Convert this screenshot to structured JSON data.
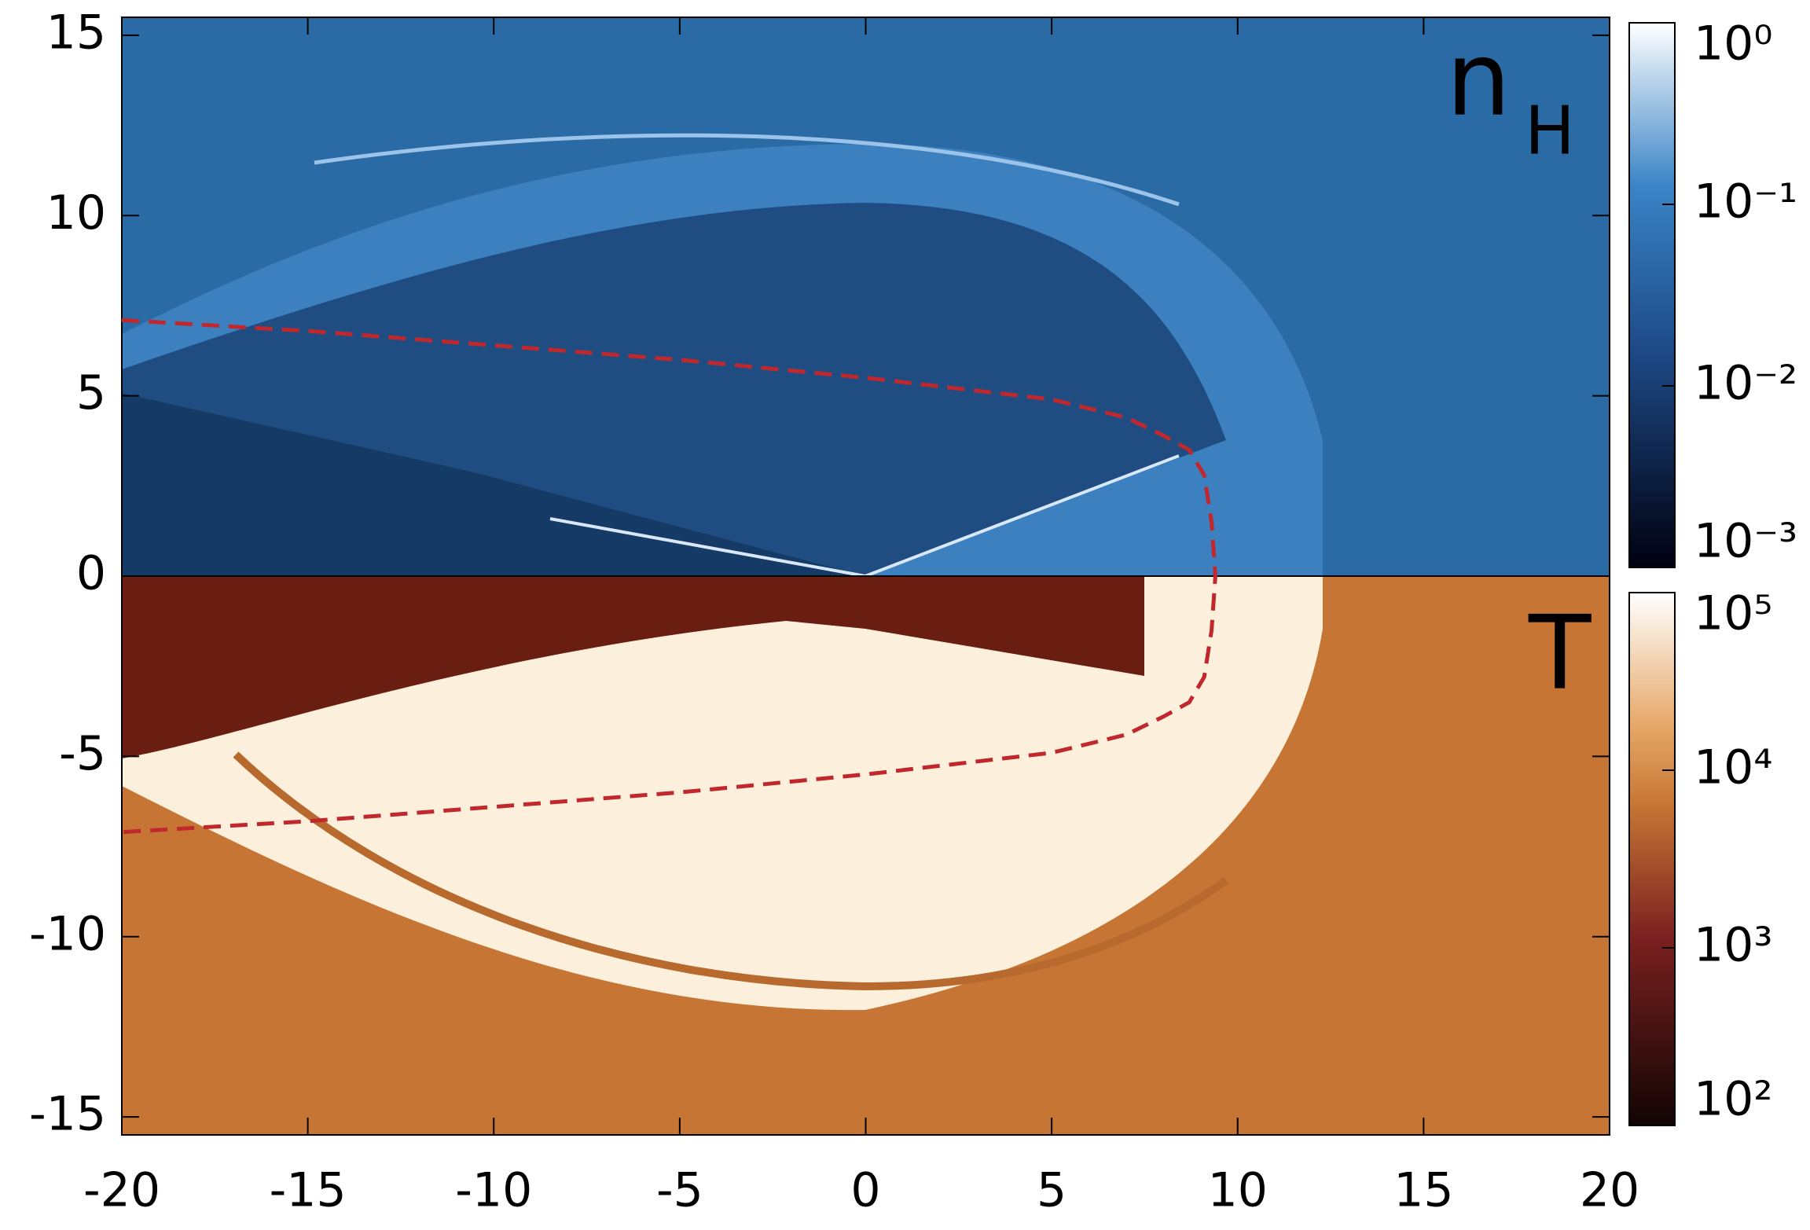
{
  "chart_data": {
    "type": "map",
    "xlim": [
      -20,
      20
    ],
    "ylim": [
      -15.5,
      15.5
    ],
    "xticks": [
      -20,
      -15,
      -10,
      -5,
      0,
      5,
      10,
      15,
      20
    ],
    "yticks": [
      15,
      10,
      5,
      0,
      -5,
      -10,
      -15
    ],
    "curve": {
      "color": "#c0282d",
      "x": [
        -20,
        -15,
        -10,
        -5,
        0,
        5,
        7,
        8,
        8.7,
        9.1,
        9.3,
        9.4,
        9.3,
        9.1,
        8.7,
        8,
        7,
        5,
        0,
        -5,
        -10,
        -15,
        -20
      ],
      "y": [
        7.1,
        6.8,
        6.4,
        6.0,
        5.5,
        4.9,
        4.4,
        3.9,
        3.5,
        2.8,
        1.5,
        0,
        -1.5,
        -2.8,
        -3.5,
        -3.9,
        -4.4,
        -4.9,
        -5.5,
        -6.0,
        -6.4,
        -6.8,
        -7.1
      ]
    },
    "panels": [
      {
        "label": "n",
        "label_subscript": "H",
        "color": "#2a6aa5",
        "log_scale": true,
        "clim": [
          0.001,
          1
        ],
        "cticks": [
          {
            "value": 1,
            "label": "10⁰"
          },
          {
            "value": 0.1,
            "label": "10⁻¹"
          },
          {
            "value": 0.01,
            "label": "10⁻²"
          },
          {
            "value": 0.001,
            "label": "10⁻³"
          }
        ]
      },
      {
        "label": "T",
        "color": "#c67534",
        "log_scale": true,
        "clim": [
          100,
          100000
        ],
        "cticks": [
          {
            "value": 100000,
            "label": "10⁵"
          },
          {
            "value": 10000,
            "label": "10⁴"
          },
          {
            "value": 1000,
            "label": "10³"
          },
          {
            "value": 100,
            "label": "10²"
          }
        ]
      }
    ]
  }
}
